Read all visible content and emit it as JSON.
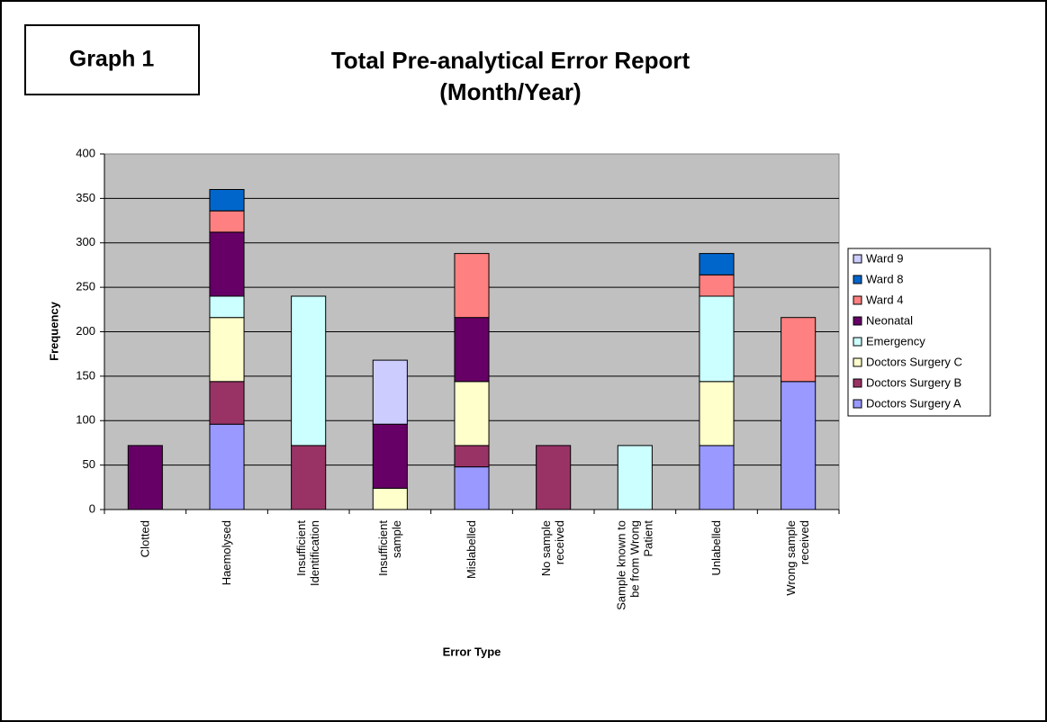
{
  "chart_data": {
    "type": "stacked_bar",
    "label": "Graph 1",
    "title": "Total Pre-analytical Error Report",
    "subtitle": "(Month/Year)",
    "x_label": "Error Type",
    "y_label": "Frequency",
    "categories": [
      "Clotted",
      "Haemolysed",
      "Insufficient Identification",
      "Insufficient sample",
      "Mislabelled",
      "No sample received",
      "Sample known to be from Wrong Patient",
      "Unlabelled",
      "Wrong sample received"
    ],
    "series": [
      {
        "name": "Doctors Surgery A",
        "color": "#9999ff",
        "values": [
          null,
          96,
          null,
          null,
          48,
          null,
          null,
          72,
          144
        ]
      },
      {
        "name": "Doctors Surgery B",
        "color": "#993366",
        "values": [
          null,
          48,
          72,
          null,
          24,
          72,
          null,
          null,
          null
        ]
      },
      {
        "name": "Doctors Surgery C",
        "color": "#ffffcc",
        "values": [
          null,
          72,
          null,
          24,
          72,
          null,
          null,
          72,
          null
        ]
      },
      {
        "name": "Emergency",
        "color": "#ccffff",
        "values": [
          null,
          24,
          168,
          null,
          null,
          null,
          72,
          96,
          null
        ]
      },
      {
        "name": "Neonatal",
        "color": "#660066",
        "values": [
          72,
          72,
          null,
          72,
          72,
          null,
          null,
          null,
          null
        ]
      },
      {
        "name": "Ward 4",
        "color": "#ff8080",
        "values": [
          null,
          24,
          null,
          null,
          72,
          null,
          null,
          24,
          72
        ]
      },
      {
        "name": "Ward 8",
        "color": "#0066cc",
        "values": [
          null,
          24,
          null,
          null,
          null,
          null,
          null,
          24,
          null
        ]
      },
      {
        "name": "Ward 9",
        "color": "#ccccff",
        "values": [
          null,
          null,
          null,
          72,
          null,
          null,
          null,
          null,
          null
        ]
      }
    ],
    "ylim": [
      0,
      400
    ],
    "yticks": [
      0,
      50,
      100,
      150,
      200,
      250,
      300,
      350,
      400
    ],
    "grid": true,
    "legend": "right"
  }
}
